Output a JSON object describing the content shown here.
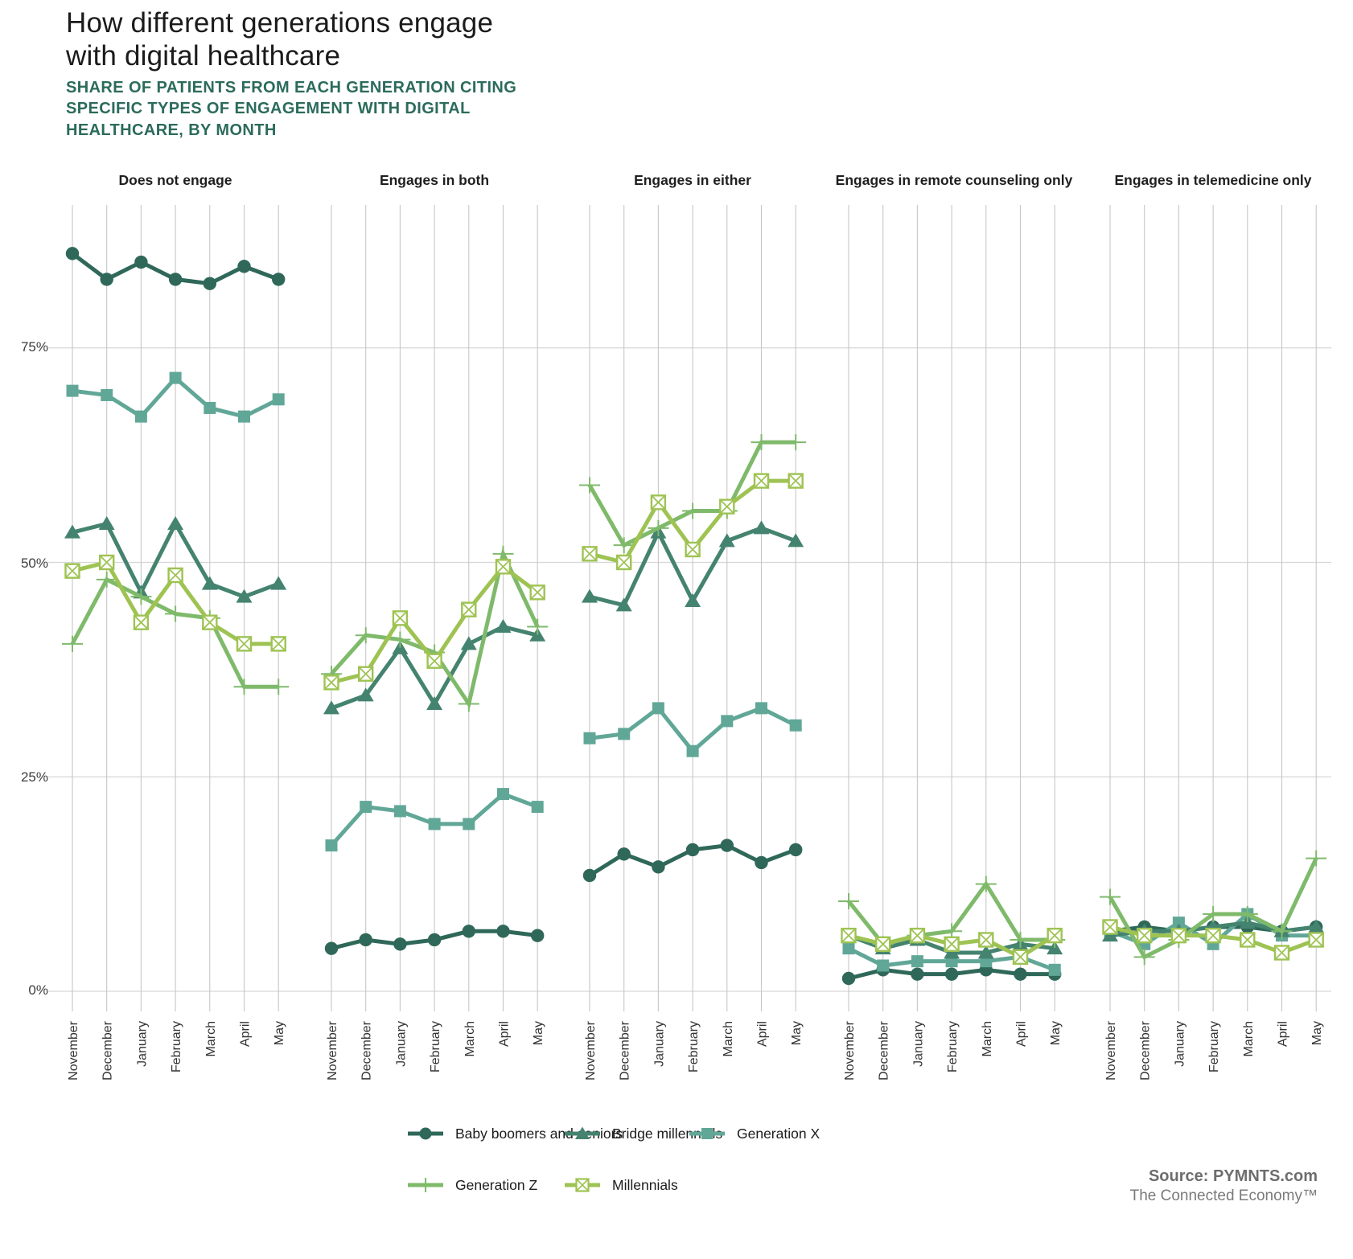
{
  "header": {
    "title": "How different generations engage\nwith digital healthcare",
    "subtitle": "SHARE OF PATIENTS FROM EACH GENERATION CITING\nSPECIFIC TYPES OF ENGAGEMENT WITH DIGITAL\nHEALTHCARE, BY MONTH"
  },
  "source": {
    "line1": "Source: PYMNTS.com",
    "line2": "The Connected Economy™"
  },
  "legend": {
    "items": [
      {
        "id": "baby_boomers",
        "label": "Baby boomers and seniors"
      },
      {
        "id": "bridge_millennials",
        "label": "Bridge millennials"
      },
      {
        "id": "gen_x",
        "label": "Generation X"
      },
      {
        "id": "gen_z",
        "label": "Generation Z"
      },
      {
        "id": "millennials",
        "label": "Millennials"
      }
    ]
  },
  "chart_data": {
    "type": "line",
    "title": "How different generations engage with digital healthcare",
    "x_categories": [
      "November",
      "December",
      "January",
      "February",
      "March",
      "April",
      "May"
    ],
    "y_ticks": [
      75,
      50,
      25,
      0
    ],
    "y_tick_labels": [
      "75%",
      "50%",
      "25%",
      "0%"
    ],
    "ylim": [
      0,
      91.5
    ],
    "grid": true,
    "legend_position": "bottom",
    "series_meta": [
      {
        "id": "baby_boomers",
        "name": "Baby boomers and seniors",
        "color": "#2f6859",
        "marker": "circle"
      },
      {
        "id": "gen_x",
        "name": "Generation X",
        "color": "#61a797",
        "marker": "square"
      },
      {
        "id": "bridge_millennials",
        "name": "Bridge millennials",
        "color": "#44836f",
        "marker": "triangle"
      },
      {
        "id": "gen_z",
        "name": "Generation Z",
        "color": "#7fba6b",
        "marker": "plus"
      },
      {
        "id": "millennials",
        "name": "Millennials",
        "color": "#9ec353",
        "marker": "square-x"
      }
    ],
    "panels": [
      {
        "title": "Does not engage",
        "series": {
          "baby_boomers": [
            86,
            83,
            85,
            83,
            82.5,
            84.5,
            83
          ],
          "gen_x": [
            70,
            69.5,
            67,
            71.5,
            68,
            67,
            69
          ],
          "bridge_millennials": [
            53.5,
            54.5,
            46.5,
            54.5,
            47.5,
            46,
            47.5
          ],
          "gen_z": [
            40.5,
            48,
            46,
            44,
            43.5,
            35.5,
            35.5
          ],
          "millennials": [
            49,
            50,
            43,
            48.5,
            43,
            40.5,
            40.5
          ]
        }
      },
      {
        "title": "Engages in both",
        "series": {
          "baby_boomers": [
            5,
            6,
            5.5,
            6,
            7,
            7,
            6.5
          ],
          "gen_x": [
            17,
            21.5,
            21,
            19.5,
            19.5,
            23,
            21.5
          ],
          "bridge_millennials": [
            33,
            34.5,
            40,
            33.5,
            40.5,
            42.5,
            41.5
          ],
          "gen_z": [
            37,
            41.5,
            41,
            39.5,
            33.5,
            51,
            42.5
          ],
          "millennials": [
            36,
            37,
            43.5,
            38.5,
            44.5,
            49.5,
            46.5
          ]
        }
      },
      {
        "title": "Engages in either",
        "series": {
          "baby_boomers": [
            13.5,
            16,
            14.5,
            16.5,
            17,
            15,
            16.5
          ],
          "gen_x": [
            29.5,
            30,
            33,
            28,
            31.5,
            33,
            31
          ],
          "bridge_millennials": [
            46,
            45,
            53.5,
            45.5,
            52.5,
            54,
            52.5
          ],
          "gen_z": [
            59,
            52,
            54,
            56,
            56,
            64,
            64
          ],
          "millennials": [
            51,
            50,
            57,
            51.5,
            56.5,
            59.5,
            59.5
          ]
        }
      },
      {
        "title": "Engages in remote counseling only",
        "series": {
          "baby_boomers": [
            1.5,
            2.5,
            2,
            2,
            2.5,
            2,
            2
          ],
          "gen_x": [
            5,
            3,
            3.5,
            3.5,
            3.5,
            4,
            2.5
          ],
          "bridge_millennials": [
            6.5,
            5,
            6,
            4.5,
            4.5,
            5.5,
            5
          ],
          "gen_z": [
            10.5,
            5.5,
            6.5,
            7,
            12.5,
            6,
            6
          ],
          "millennials": [
            6.5,
            5.5,
            6.5,
            5.5,
            6,
            4,
            6.5
          ]
        }
      },
      {
        "title": "Engages in telemedicine only",
        "series": {
          "baby_boomers": [
            7,
            7.5,
            7,
            7.5,
            7.5,
            7,
            7.5
          ],
          "gen_x": [
            7,
            5.5,
            8,
            5.5,
            9,
            6.5,
            6.5
          ],
          "bridge_millennials": [
            6.5,
            7,
            7,
            7.5,
            8,
            7,
            7.5
          ],
          "gen_z": [
            11,
            4,
            6,
            9,
            9,
            7,
            15.5
          ],
          "millennials": [
            7.5,
            6.5,
            6.5,
            6.5,
            6,
            4.5,
            6
          ]
        }
      }
    ]
  }
}
